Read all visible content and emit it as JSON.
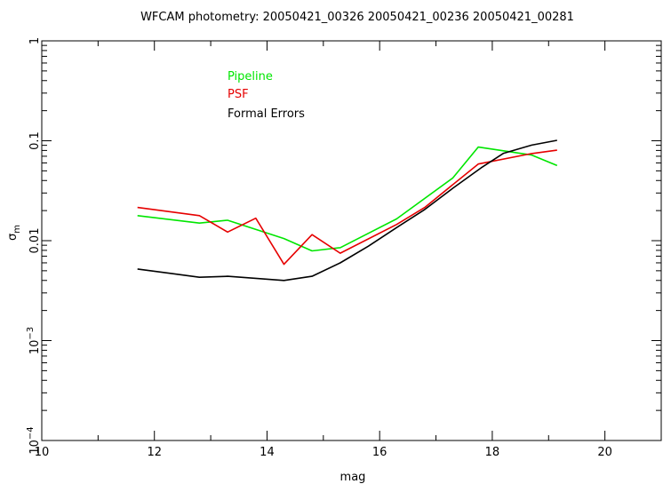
{
  "chart_data": {
    "type": "line",
    "title": "WFCAM photometry: 20050421_00326 20050421_00236 20050421_00281",
    "xlabel": "mag",
    "ylabel_symbol": "σ",
    "ylabel_subscript": "m",
    "xlim": [
      10,
      21
    ],
    "ylim": [
      0.0001,
      1
    ],
    "yscale": "log",
    "grid": false,
    "legend_placement": "top-left",
    "x_ticks": [
      {
        "value": 10,
        "label": "10"
      },
      {
        "value": 12,
        "label": "12"
      },
      {
        "value": 14,
        "label": "14"
      },
      {
        "value": 16,
        "label": "16"
      },
      {
        "value": 18,
        "label": "18"
      },
      {
        "value": 20,
        "label": "20"
      }
    ],
    "y_ticks": [
      {
        "value": 1,
        "label": "1"
      },
      {
        "value": 0.1,
        "label": "0.1"
      },
      {
        "value": 0.01,
        "label": "0.01"
      },
      {
        "value": 0.001,
        "base": "10",
        "exp": "−3"
      },
      {
        "value": 0.0001,
        "base": "10",
        "exp": "−4"
      }
    ],
    "series": [
      {
        "name": "Pipeline",
        "color": "#00e600",
        "x": [
          11.7,
          12.8,
          13.3,
          14.3,
          14.8,
          15.3,
          16.3,
          17.3,
          17.75,
          18.7,
          19.15
        ],
        "y": [
          0.0178,
          0.015,
          0.016,
          0.0105,
          0.0079,
          0.0085,
          0.0165,
          0.0425,
          0.0865,
          0.072,
          0.0565
        ]
      },
      {
        "name": "PSF",
        "color": "#e60000",
        "x": [
          11.7,
          12.8,
          13.3,
          13.8,
          14.3,
          14.8,
          15.3,
          16.3,
          16.8,
          17.75,
          18.7,
          19.15
        ],
        "y": [
          0.0215,
          0.0178,
          0.0122,
          0.0168,
          0.0058,
          0.0115,
          0.0075,
          0.0145,
          0.0215,
          0.0585,
          0.0745,
          0.0805
        ]
      },
      {
        "name": "Formal Errors",
        "color": "#000000",
        "x": [
          11.7,
          12.3,
          12.8,
          13.3,
          13.8,
          14.3,
          14.8,
          15.3,
          15.8,
          16.3,
          16.8,
          17.3,
          17.8,
          18.2,
          18.7,
          19.15
        ],
        "y": [
          0.0052,
          0.0047,
          0.0043,
          0.0044,
          0.0042,
          0.004,
          0.0044,
          0.006,
          0.0088,
          0.0135,
          0.0205,
          0.0335,
          0.0535,
          0.075,
          0.0905,
          0.101
        ]
      }
    ]
  }
}
